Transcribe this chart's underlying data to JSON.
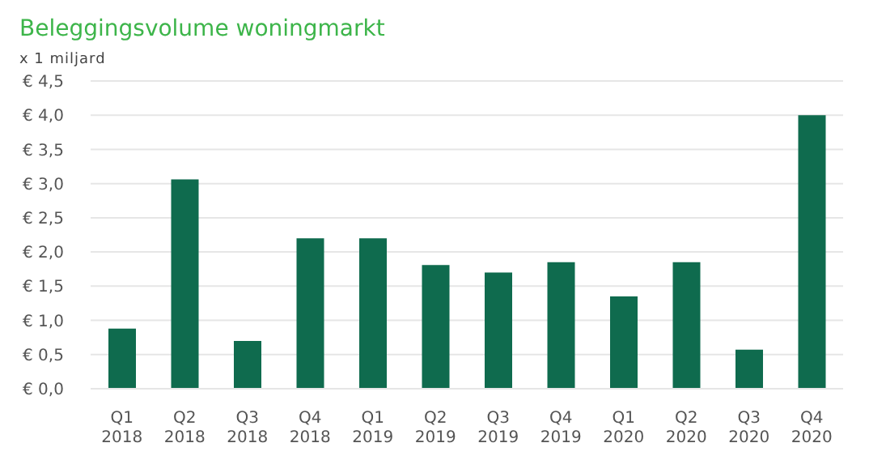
{
  "chart_data": {
    "type": "bar",
    "title": "Beleggingsvolume woningmarkt",
    "ylabel": "x 1 miljard",
    "categories": [
      "Q1\n2018",
      "Q2\n2018",
      "Q3\n2018",
      "Q4\n2018",
      "Q1\n2019",
      "Q2\n2019",
      "Q3\n2019",
      "Q4\n2019",
      "Q1\n2020",
      "Q2\n2020",
      "Q3\n2020",
      "Q4\n2020"
    ],
    "values": [
      0.88,
      3.06,
      0.7,
      2.2,
      2.2,
      1.81,
      1.7,
      1.85,
      1.35,
      1.85,
      0.57,
      4.0
    ],
    "color": "#0f6b4e",
    "ylim": [
      0,
      4.5
    ],
    "yticks": [
      {
        "value": 0,
        "label": "€ 0,0"
      },
      {
        "value": 0.5,
        "label": "€ 0,5"
      },
      {
        "value": 1,
        "label": "€ 1,0"
      },
      {
        "value": 1.5,
        "label": "€ 1,5"
      },
      {
        "value": 2,
        "label": "€ 2,0"
      },
      {
        "value": 2.5,
        "label": "€ 2,5"
      },
      {
        "value": 3,
        "label": "€ 3,0"
      },
      {
        "value": 3.5,
        "label": "€ 3,5"
      },
      {
        "value": 4,
        "label": "€ 4,0"
      },
      {
        "value": 4.5,
        "label": "€ 4,5"
      }
    ],
    "grid": "y"
  }
}
